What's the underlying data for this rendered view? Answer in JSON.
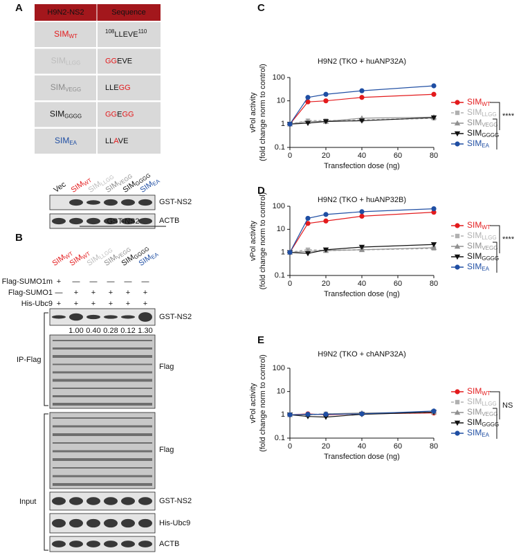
{
  "panel_a": {
    "label": "A",
    "table": {
      "header": [
        "H9N2-NS2",
        "Sequence"
      ],
      "rows": [
        {
          "name": "SIM",
          "sub": "WT",
          "color": "#e31a1c",
          "sequence": [
            {
              "text": "108",
              "sup": true
            },
            {
              "text": "LLEVE"
            },
            {
              "text": "110",
              "sup": true
            }
          ]
        },
        {
          "name": "SIM",
          "sub": "LLGG",
          "color": "#bdbdbd",
          "sequence": [
            {
              "text": "GG",
              "color": "#e31a1c"
            },
            {
              "text": "EVE"
            }
          ]
        },
        {
          "name": "SIM",
          "sub": "VEGG",
          "color": "#8c8c8c",
          "sequence": [
            {
              "text": "LLE"
            },
            {
              "text": "GG",
              "color": "#e31a1c"
            }
          ]
        },
        {
          "name": "SIM",
          "sub": "GGGG",
          "color": "#111111",
          "sequence": [
            {
              "text": "GG",
              "color": "#e31a1c"
            },
            {
              "text": "E"
            },
            {
              "text": "GG",
              "color": "#e31a1c"
            }
          ]
        },
        {
          "name": "SIM",
          "sub": "EA",
          "color": "#1f4ea3",
          "sequence": [
            {
              "text": "LL"
            },
            {
              "text": "A",
              "color": "#e31a1c"
            },
            {
              "text": "VE"
            }
          ]
        }
      ]
    },
    "blot": {
      "lanes": [
        {
          "name": "Vec",
          "color": "#111111"
        },
        {
          "name": "SIM",
          "sub": "WT",
          "color": "#e31a1c"
        },
        {
          "name": "SIM",
          "sub": "LLGG",
          "color": "#bdbdbd"
        },
        {
          "name": "SIM",
          "sub": "VEGG",
          "color": "#8c8c8c"
        },
        {
          "name": "SIM",
          "sub": "GGGG",
          "color": "#111111"
        },
        {
          "name": "SIM",
          "sub": "EA",
          "color": "#1f4ea3"
        }
      ],
      "rows": [
        "GST-NS2",
        "ACTB"
      ]
    }
  },
  "panel_b": {
    "label": "B",
    "group": "GST-NS2",
    "lanes": [
      {
        "name": "SIM",
        "sub": "WT",
        "color": "#e31a1c"
      },
      {
        "name": "SIM",
        "sub": "WT",
        "color": "#e31a1c"
      },
      {
        "name": "SIM",
        "sub": "LLGG",
        "color": "#bdbdbd"
      },
      {
        "name": "SIM",
        "sub": "VEGG",
        "color": "#8c8c8c"
      },
      {
        "name": "SIM",
        "sub": "GGGG",
        "color": "#111111"
      },
      {
        "name": "SIM",
        "sub": "EA",
        "color": "#1f4ea3"
      }
    ],
    "conditions": [
      {
        "label": "Flag-SUMO1m",
        "signs": [
          "+",
          "—",
          "—",
          "—",
          "—",
          "—"
        ]
      },
      {
        "label": "Flag-SUMO1",
        "signs": [
          "—",
          "+",
          "+",
          "+",
          "+",
          "+"
        ]
      },
      {
        "label": "His-Ubc9",
        "signs": [
          "+",
          "+",
          "+",
          "+",
          "+",
          "+"
        ]
      }
    ],
    "ip_label": "IP-Flag",
    "ip_rows": [
      "GST-NS2",
      "Flag"
    ],
    "quantification": [
      "1.00",
      "0.40",
      "0.28",
      "0.12",
      "1.30"
    ],
    "input_label": "Input",
    "input_rows": [
      "Flag",
      "GST-NS2",
      "His-Ubc9",
      "ACTB"
    ]
  },
  "chart_data": [
    {
      "type": "line",
      "panel": "C",
      "title": "H9N2 (TKO + huANP32A)",
      "xlabel": "Transfection dose (ng)",
      "ylabel": [
        "vPol activity",
        "(fold change norm to control)"
      ],
      "x": [
        0,
        10,
        20,
        40,
        80
      ],
      "xlim": [
        0,
        80
      ],
      "xticks": [
        0,
        20,
        40,
        60,
        80
      ],
      "ylim": [
        0.1,
        100
      ],
      "yticks": [
        0.1,
        1,
        10,
        100
      ],
      "log_y": true,
      "annotation": "****",
      "series": [
        {
          "name": "SIM",
          "subscript": "WT",
          "color": "#e31a1c",
          "marker": "circle",
          "dashed": false,
          "values": [
            1,
            9,
            10,
            14,
            19
          ]
        },
        {
          "name": "SIM",
          "subscript": "LLGG",
          "color": "#b0b0b0",
          "marker": "square",
          "dashed": true,
          "values": [
            1,
            1.4,
            1.4,
            1.5,
            1.8
          ]
        },
        {
          "name": "SIM",
          "subscript": "VEGG",
          "color": "#909090",
          "marker": "triangle",
          "dashed": false,
          "values": [
            1,
            1.3,
            1.3,
            1.8,
            2.0
          ]
        },
        {
          "name": "SIM",
          "subscript": "GGGG",
          "color": "#111111",
          "marker": "triangle-down",
          "dashed": false,
          "values": [
            1,
            1.1,
            1.3,
            1.4,
            1.9
          ]
        },
        {
          "name": "SIM",
          "subscript": "EA",
          "color": "#1f4ea3",
          "marker": "circle",
          "dashed": false,
          "values": [
            1,
            14,
            19,
            27,
            44
          ]
        }
      ]
    },
    {
      "type": "line",
      "panel": "D",
      "title": "H9N2 (TKO + huANP32B)",
      "xlabel": "Transfection dose (ng)",
      "ylabel": [
        "vPol activity",
        "(fold change norm to control)"
      ],
      "x": [
        0,
        10,
        20,
        40,
        80
      ],
      "xlim": [
        0,
        80
      ],
      "xticks": [
        0,
        20,
        40,
        60,
        80
      ],
      "ylim": [
        0.1,
        100
      ],
      "yticks": [
        0.1,
        1,
        10,
        100
      ],
      "log_y": true,
      "annotation": "****",
      "series": [
        {
          "name": "SIM",
          "subscript": "WT",
          "color": "#e31a1c",
          "marker": "circle",
          "dashed": false,
          "values": [
            1,
            18,
            23,
            37,
            55
          ]
        },
        {
          "name": "SIM",
          "subscript": "LLGG",
          "color": "#b0b0b0",
          "marker": "square",
          "dashed": true,
          "values": [
            1,
            1.3,
            1.2,
            1.3,
            1.5
          ]
        },
        {
          "name": "SIM",
          "subscript": "VEGG",
          "color": "#909090",
          "marker": "triangle",
          "dashed": false,
          "values": [
            1,
            1.1,
            1.2,
            1.3,
            1.6
          ]
        },
        {
          "name": "SIM",
          "subscript": "GGGG",
          "color": "#111111",
          "marker": "triangle-down",
          "dashed": false,
          "values": [
            1,
            0.9,
            1.3,
            1.7,
            2.2
          ]
        },
        {
          "name": "SIM",
          "subscript": "EA",
          "color": "#1f4ea3",
          "marker": "circle",
          "dashed": false,
          "values": [
            1,
            30,
            44,
            58,
            78
          ]
        }
      ]
    },
    {
      "type": "line",
      "panel": "E",
      "title": "H9N2 (TKO + chANP32A)",
      "xlabel": "Transfection dose (ng)",
      "ylabel": [
        "vPol activity",
        "(fold change norm to control)"
      ],
      "x": [
        0,
        10,
        20,
        40,
        80
      ],
      "xlim": [
        0,
        80
      ],
      "xticks": [
        0,
        20,
        40,
        60,
        80
      ],
      "ylim": [
        0.1,
        100
      ],
      "yticks": [
        0.1,
        1,
        10,
        100
      ],
      "log_y": true,
      "annotation": "NS",
      "series": [
        {
          "name": "SIM",
          "subscript": "WT",
          "color": "#e31a1c",
          "marker": "circle",
          "dashed": false,
          "values": [
            1,
            1.1,
            1.0,
            1.1,
            1.2
          ]
        },
        {
          "name": "SIM",
          "subscript": "LLGG",
          "color": "#b0b0b0",
          "marker": "square",
          "dashed": true,
          "values": [
            1,
            1.0,
            1.1,
            1.1,
            1.3
          ]
        },
        {
          "name": "SIM",
          "subscript": "VEGG",
          "color": "#909090",
          "marker": "triangle",
          "dashed": false,
          "values": [
            1,
            1.0,
            1.1,
            1.2,
            1.3
          ]
        },
        {
          "name": "SIM",
          "subscript": "GGGG",
          "color": "#111111",
          "marker": "triangle-down",
          "dashed": false,
          "values": [
            1,
            0.85,
            0.8,
            1.05,
            1.3
          ]
        },
        {
          "name": "SIM",
          "subscript": "EA",
          "color": "#1f4ea3",
          "marker": "circle",
          "dashed": false,
          "values": [
            1,
            1.05,
            1.05,
            1.1,
            1.45
          ]
        }
      ]
    }
  ]
}
